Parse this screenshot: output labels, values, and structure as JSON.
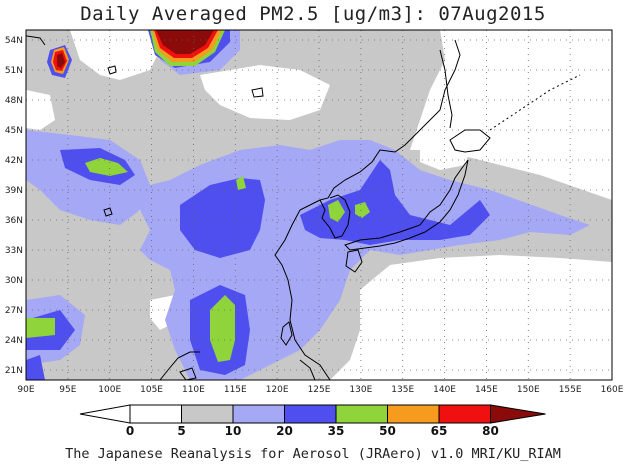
{
  "title": "Daily Averaged PM2.5 [ug/m3]: 07Aug2015",
  "credit": "The Japanese Reanalysis for Aerosol (JRAero) v1.0 MRI/KU_RIAM",
  "map": {
    "lon_range": [
      90,
      160
    ],
    "lat_range": [
      20,
      55
    ],
    "lon_ticks": [
      "90E",
      "95E",
      "100E",
      "105E",
      "110E",
      "115E",
      "120E",
      "125E",
      "130E",
      "135E",
      "140E",
      "145E",
      "150E",
      "155E",
      "160E"
    ],
    "lat_ticks": [
      "54N",
      "51N",
      "48N",
      "45N",
      "42N",
      "39N",
      "36N",
      "33N",
      "30N",
      "27N",
      "24N",
      "21N"
    ],
    "grid": true
  },
  "colorbar": {
    "labels": [
      "0",
      "5",
      "10",
      "20",
      "35",
      "50",
      "65",
      "80"
    ],
    "colors": [
      "#ffffff",
      "#c8c8c8",
      "#a5a8f5",
      "#4f4fef",
      "#8fd43a",
      "#f59b1e",
      "#f01010",
      "#8b0a0a"
    ]
  }
}
